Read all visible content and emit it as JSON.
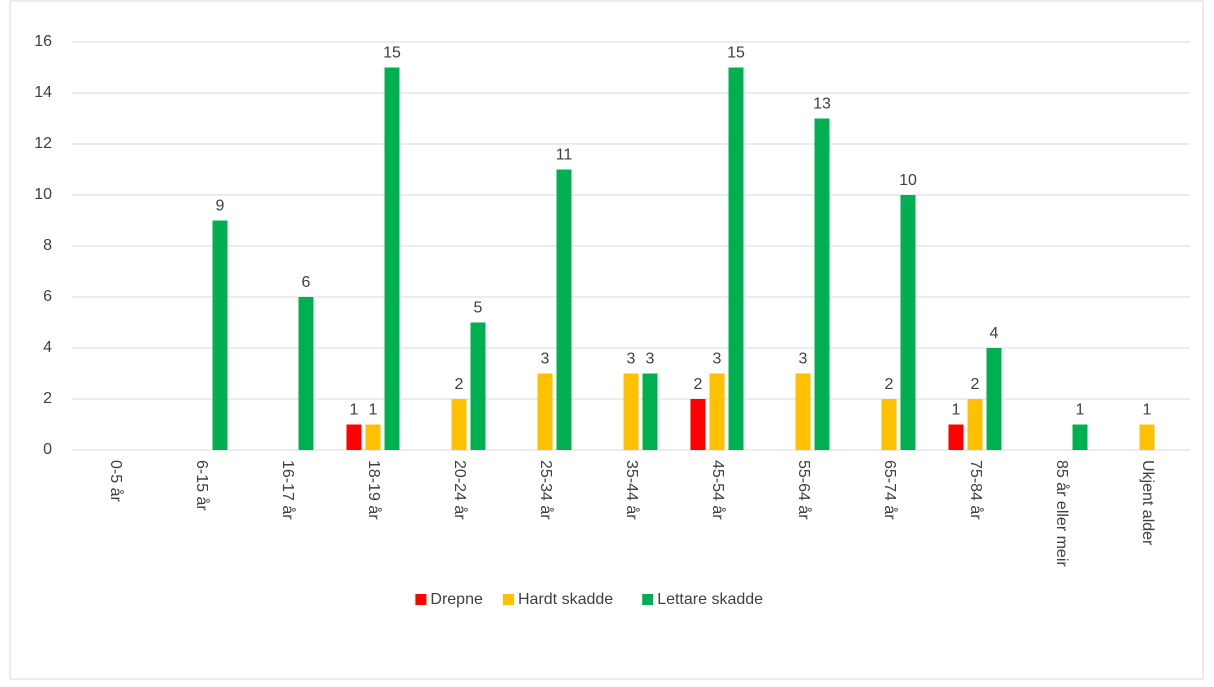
{
  "chart_data": {
    "type": "bar",
    "categories": [
      "0-5 år",
      "6-15 år",
      "16-17 år",
      "18-19 år",
      "20-24 år",
      "25-34 år",
      "35-44 år",
      "45-54 år",
      "55-64 år",
      "65-74 år",
      "75-84 år",
      "85 år eller meir",
      "Ukjent alder"
    ],
    "series": [
      {
        "name": "Drepne",
        "color": "#ff0000",
        "values": [
          null,
          null,
          null,
          1,
          null,
          null,
          null,
          2,
          null,
          null,
          1,
          null,
          null
        ]
      },
      {
        "name": "Hardt skadde",
        "color": "#ffc000",
        "values": [
          null,
          null,
          null,
          1,
          2,
          3,
          3,
          3,
          3,
          2,
          2,
          null,
          1
        ]
      },
      {
        "name": "Lettare skadde",
        "color": "#00b050",
        "values": [
          null,
          9,
          6,
          15,
          5,
          11,
          3,
          15,
          13,
          10,
          4,
          1,
          null
        ]
      }
    ],
    "ylim": [
      0,
      16
    ],
    "yticks": [
      0,
      2,
      4,
      6,
      8,
      10,
      12,
      14,
      16
    ],
    "grid": true,
    "legend": "bottom"
  }
}
